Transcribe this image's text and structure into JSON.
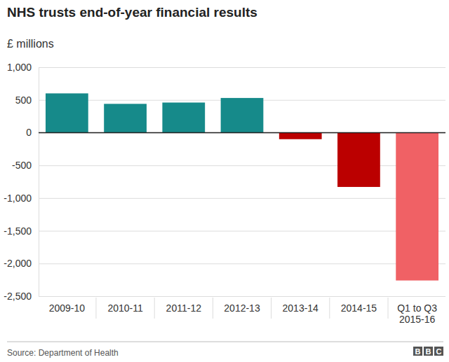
{
  "chart_data": {
    "type": "bar",
    "title": "NHS trusts end-of-year financial results",
    "subtitle": "£ millions",
    "source": "Source: Department of Health",
    "logo": "BBC",
    "categories": [
      "2009-10",
      "2010-11",
      "2011-12",
      "2012-13",
      "2013-14",
      "2014-15",
      "Q1 to Q3 2015-16"
    ],
    "values": [
      600,
      440,
      460,
      530,
      -100,
      -830,
      -2260
    ],
    "colors": [
      "#168a8a",
      "#168a8a",
      "#168a8a",
      "#168a8a",
      "#bb0000",
      "#bb0000",
      "#f06165"
    ],
    "ylim": [
      -2500,
      1000
    ],
    "yticks": [
      {
        "value": -2500,
        "label": "-2,500"
      },
      {
        "value": -2000,
        "label": "-2,000"
      },
      {
        "value": -1500,
        "label": "-1,500"
      },
      {
        "value": -1000,
        "label": "-1,000"
      },
      -500,
      0,
      500,
      {
        "value": 1000,
        "label": "1,000"
      }
    ],
    "grid": true
  }
}
